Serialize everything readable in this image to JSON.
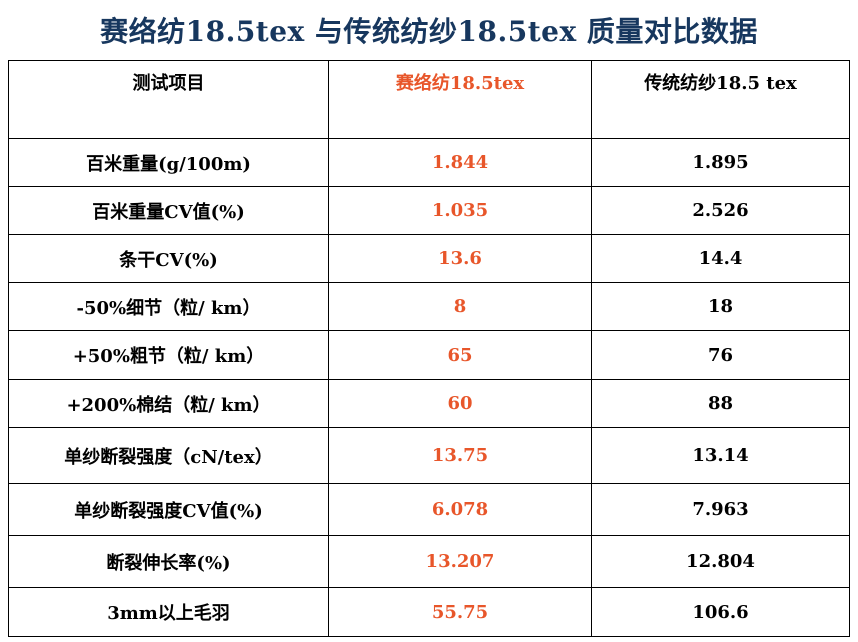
{
  "title": "赛络纺18.5tex 与传统纺纱18.5tex 质量对比数据",
  "colors": {
    "title": "#17375e",
    "highlight": "#e8562a",
    "text": "#000000",
    "border": "#000000"
  },
  "table": {
    "headers": [
      "测试项目",
      "赛络纺18.5tex",
      "传统纺纱18.5 tex"
    ],
    "rows": [
      {
        "item": "百米重量(g/100m)",
        "siro": "1.844",
        "traditional": "1.895"
      },
      {
        "item": "百米重量CV值(%)",
        "siro": "1.035",
        "traditional": "2.526"
      },
      {
        "item": "条干CV(%)",
        "siro": "13.6",
        "traditional": "14.4"
      },
      {
        "item": "-50%细节（粒/ km）",
        "siro": "8",
        "traditional": "18"
      },
      {
        "item": "+50%粗节（粒/ km）",
        "siro": "65",
        "traditional": "76"
      },
      {
        "item": "+200%棉结（粒/ km）",
        "siro": "60",
        "traditional": "88"
      },
      {
        "item": "单纱断裂强度（cN/tex）",
        "siro": "13.75",
        "traditional": "13.14"
      },
      {
        "item": "单纱断裂强度CV值(%)",
        "siro": "6.078",
        "traditional": "7.963"
      },
      {
        "item": "断裂伸长率(%)",
        "siro": "13.207",
        "traditional": "12.804"
      },
      {
        "item": "3mm以上毛羽",
        "siro": "55.75",
        "traditional": "106.6"
      }
    ]
  }
}
